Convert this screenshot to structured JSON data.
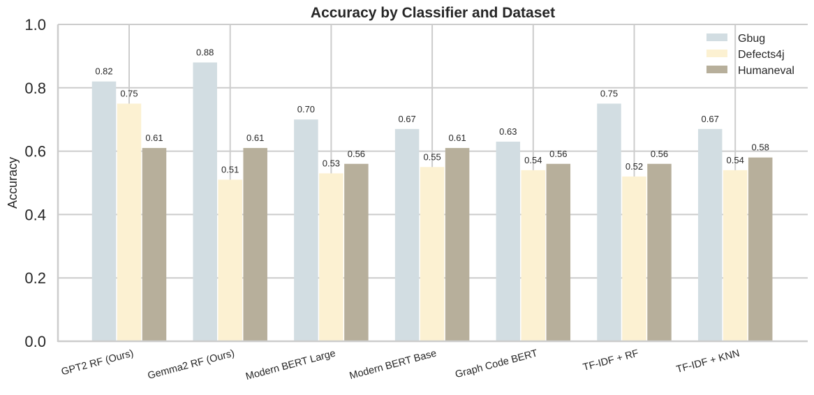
{
  "chart_data": {
    "type": "bar",
    "title": "Accuracy by Classifier and Dataset",
    "xlabel": "",
    "ylabel": "Accuracy",
    "ylim": [
      0,
      1.0
    ],
    "yticks": [
      "0.0",
      "0.2",
      "0.4",
      "0.6",
      "0.8",
      "1.0"
    ],
    "grid": true,
    "legend_position": "top-right",
    "categories": [
      "GPT2 RF (Ours)",
      "Gemma2 RF (Ours)",
      "Modern BERT Large",
      "Modern BERT Base",
      "Graph Code BERT",
      "TF-IDF + RF",
      "TF-IDF + KNN"
    ],
    "series": [
      {
        "name": "Gbug",
        "color": "#d2dde2",
        "values": [
          0.82,
          0.88,
          0.7,
          0.67,
          0.63,
          0.75,
          0.67
        ],
        "labels": [
          "0.82",
          "0.88",
          "0.70",
          "0.67",
          "0.63",
          "0.75",
          "0.67"
        ]
      },
      {
        "name": "Defects4j",
        "color": "#fcf1d2",
        "values": [
          0.75,
          0.51,
          0.53,
          0.55,
          0.54,
          0.52,
          0.54
        ],
        "labels": [
          "0.75",
          "0.51",
          "0.53",
          "0.55",
          "0.54",
          "0.52",
          "0.54"
        ]
      },
      {
        "name": "Humaneval",
        "color": "#b7af9b",
        "values": [
          0.61,
          0.61,
          0.56,
          0.61,
          0.56,
          0.56,
          0.58
        ],
        "labels": [
          "0.61",
          "0.61",
          "0.56",
          "0.61",
          "0.56",
          "0.56",
          "0.58"
        ]
      }
    ]
  }
}
